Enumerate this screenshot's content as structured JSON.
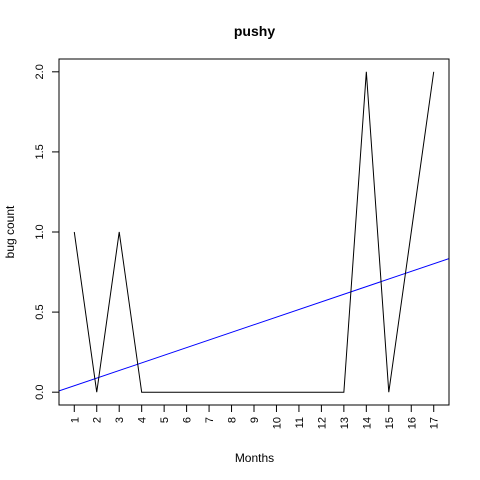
{
  "chart_data": {
    "type": "line",
    "title": "pushy",
    "xlabel": "Months",
    "ylabel": "bug count",
    "x": [
      1,
      2,
      3,
      4,
      5,
      6,
      7,
      8,
      9,
      10,
      11,
      12,
      13,
      14,
      15,
      16,
      17
    ],
    "x_tick_labels": [
      "1",
      "2",
      "3",
      "4",
      "5",
      "6",
      "7",
      "8",
      "9",
      "10",
      "11",
      "12",
      "13",
      "14",
      "15",
      "16",
      "17"
    ],
    "y_tick_labels": [
      "0.0",
      "0.5",
      "1.0",
      "1.5",
      "2.0"
    ],
    "series": [
      {
        "values": [
          1,
          0,
          1,
          0,
          0,
          0,
          0,
          0,
          0,
          0,
          0,
          0,
          0,
          2,
          0,
          1,
          2
        ],
        "color": "#000000"
      }
    ],
    "trend_line": {
      "intercept": -0.0074,
      "slope": 0.0476,
      "color": "#0000ff"
    },
    "xlim": [
      0.32,
      17.68
    ],
    "ylim": [
      -0.08,
      2.08
    ],
    "grid": false
  }
}
